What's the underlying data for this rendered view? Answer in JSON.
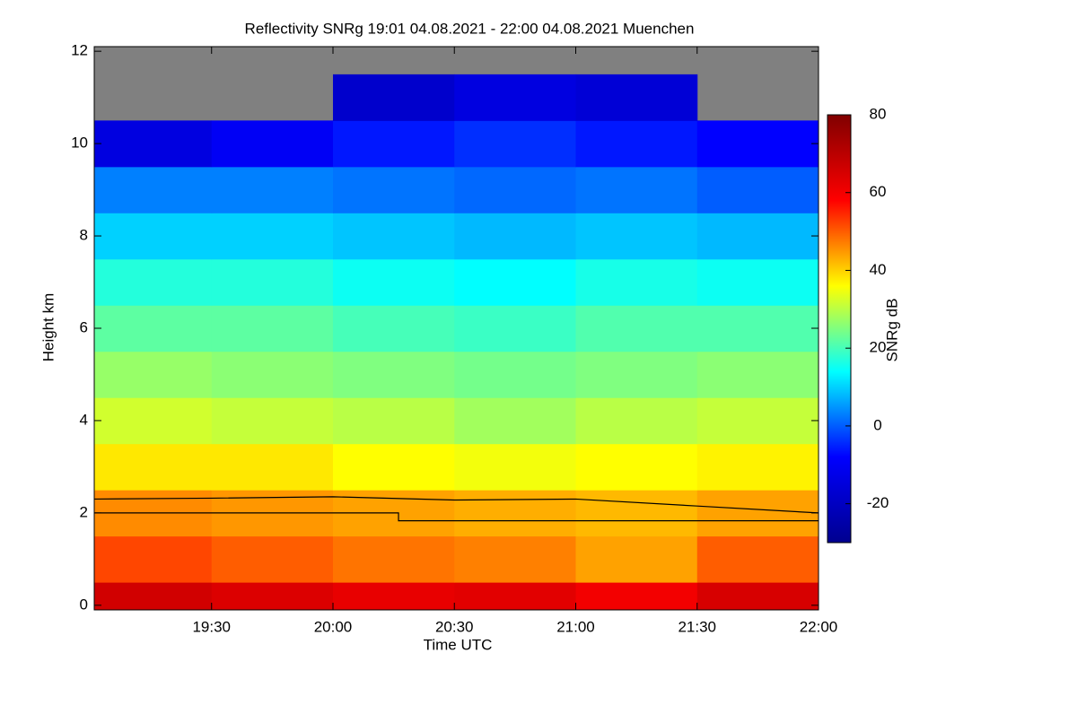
{
  "chart_data": {
    "type": "heatmap",
    "title": "Reflectivity SNRg   19:01 04.08.2021 - 22:00 04.08.2021 Muenchen",
    "x_label": "Time UTC",
    "y_label": "Height km",
    "colorbar_label": "SNRg dB",
    "x": [
      19.25,
      19.75,
      20.25,
      20.75,
      21.25,
      21.75
    ],
    "y": [
      0,
      1,
      2,
      3,
      4,
      5,
      6,
      7,
      8,
      9,
      10,
      11,
      12
    ],
    "z": [
      [
        66,
        64,
        62,
        63,
        60,
        65
      ],
      [
        52,
        50,
        48,
        47,
        44,
        50
      ],
      [
        46,
        45,
        44,
        43,
        42,
        44
      ],
      [
        38,
        38,
        36,
        35,
        36,
        37
      ],
      [
        32,
        31,
        30,
        28,
        30,
        31
      ],
      [
        27,
        26,
        25,
        24,
        25,
        26
      ],
      [
        22,
        22,
        20,
        19,
        21,
        21
      ],
      [
        17,
        17,
        15,
        14,
        16,
        15
      ],
      [
        10,
        10,
        9,
        8,
        9,
        8
      ],
      [
        3,
        3,
        2,
        1,
        2,
        0
      ],
      [
        -14,
        -10,
        -6,
        -4,
        -6,
        -8
      ],
      [
        null,
        null,
        -18,
        -14,
        -16,
        null
      ],
      [
        null,
        null,
        null,
        null,
        null,
        null
      ]
    ],
    "xlim": [
      19.0167,
      22.0
    ],
    "ylim": [
      -0.1,
      12.1
    ],
    "zlim": [
      -30,
      80
    ],
    "xticks": [
      {
        "value": 19.5,
        "label": "19:30"
      },
      {
        "value": 20.0,
        "label": "20:00"
      },
      {
        "value": 20.5,
        "label": "20:30"
      },
      {
        "value": 21.0,
        "label": "21:00"
      },
      {
        "value": 21.5,
        "label": "21:30"
      },
      {
        "value": 22.0,
        "label": "22:00"
      }
    ],
    "yticks": [
      0,
      2,
      4,
      6,
      8,
      10,
      12
    ],
    "zticks": [
      -20,
      0,
      20,
      40,
      60,
      80
    ],
    "missing_color": "#808080",
    "colormap": [
      "#00008f",
      "#0000ff",
      "#00ffff",
      "#ffff00",
      "#ff0000",
      "#800000"
    ],
    "lines": [
      {
        "color": "#000000",
        "x": [
          19.0167,
          19.5,
          20.0,
          20.5,
          21.0,
          21.5,
          22.0
        ],
        "values": [
          2.3,
          2.32,
          2.35,
          2.28,
          2.3,
          2.15,
          2.0
        ]
      },
      {
        "color": "#000000",
        "x": [
          19.0167,
          20.27,
          20.27,
          22.0
        ],
        "values": [
          2.0,
          2.0,
          1.83,
          1.83
        ]
      }
    ]
  }
}
